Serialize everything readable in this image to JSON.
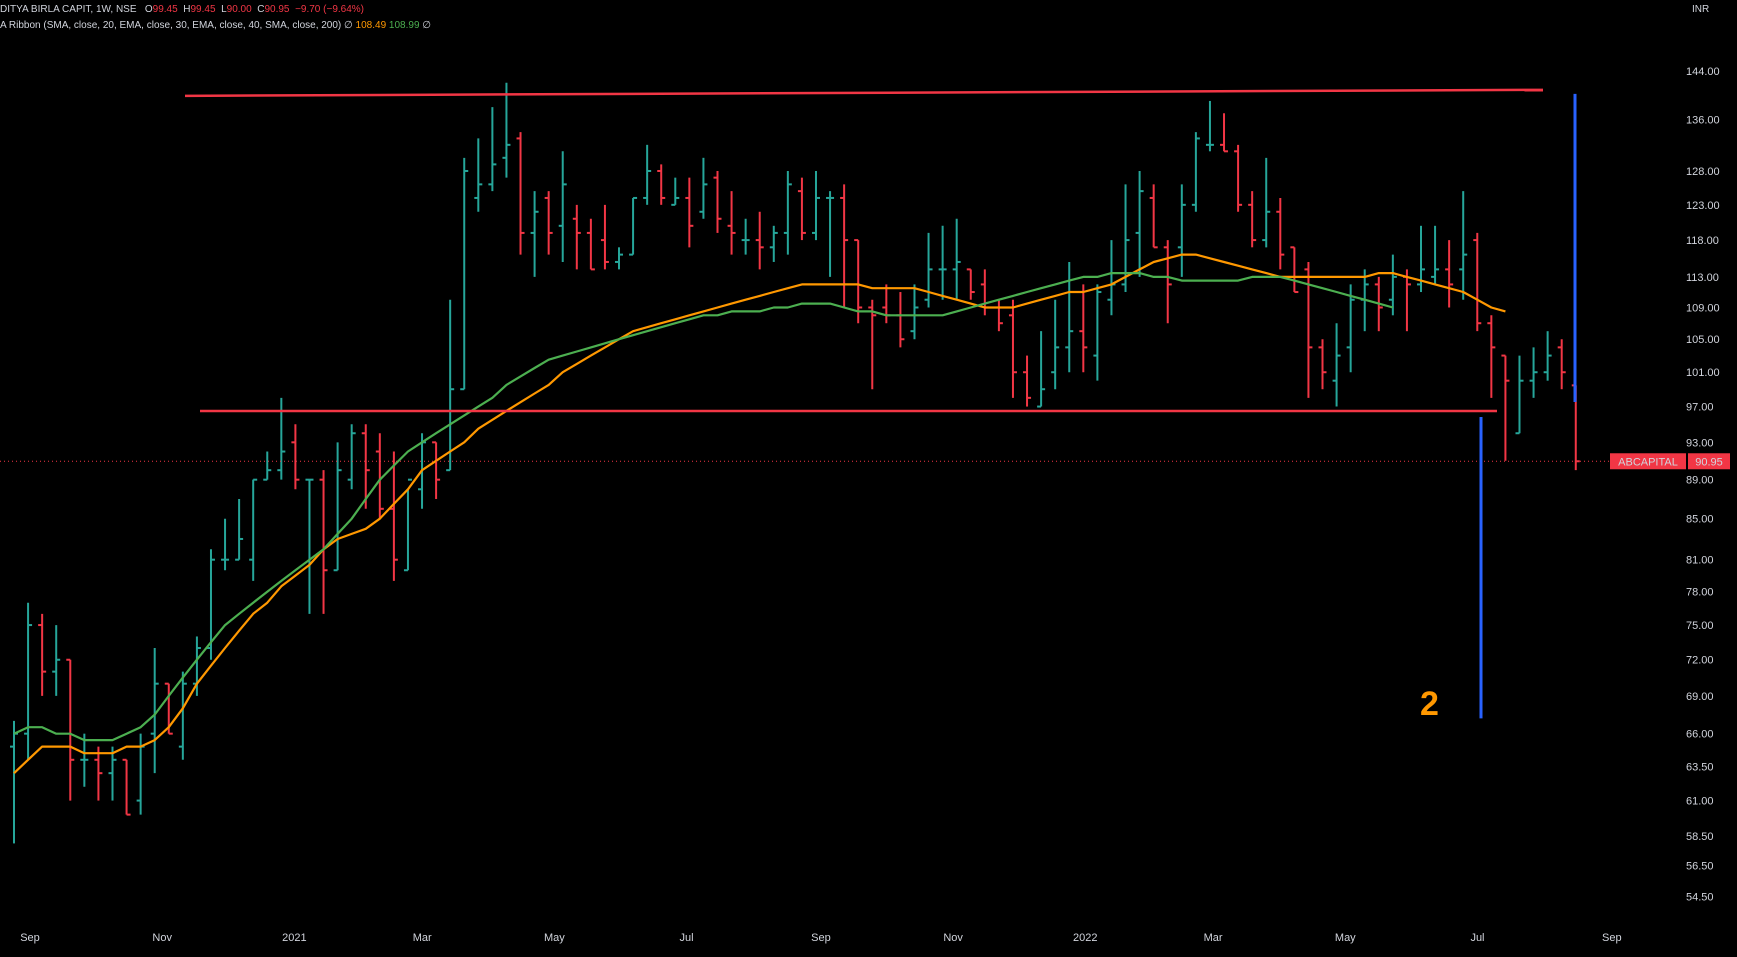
{
  "legend": {
    "title": "DITYA BIRLA CAPIT, 1W, NSE",
    "o_label": "O",
    "o_val": "99.45",
    "h_label": "H",
    "h_val": "99.45",
    "l_label": "L",
    "l_val": "90.00",
    "c_label": "C",
    "c_val": "90.95",
    "change": "−9.70 (−9.64%)",
    "indicator": "A Ribbon (SMA, close, 20, EMA, close, 30, EMA, close, 40, SMA, close, 200)",
    "ind_sep1": "∅",
    "ema_val": "108.49",
    "sma_val": "108.99",
    "ind_sep2": "∅"
  },
  "currency": "INR",
  "price_tag": {
    "symbol": "ABCAPITAL",
    "value": "90.95"
  },
  "annotation_text": "2",
  "colors": {
    "up": "#26a69a",
    "down": "#f23645",
    "ema": "#ff9800",
    "sma": "#4caf50",
    "level": "#f23645",
    "measure": "#2962ff",
    "annotation": "#ff9800"
  },
  "chart_data": {
    "type": "ohlc",
    "interval": "1W",
    "symbol": "ABCAPITAL",
    "y_axis": {
      "scale": "log",
      "range": [
        53,
        152
      ],
      "ticks": [
        "144.00",
        "136.00",
        "128.00",
        "123.00",
        "118.00",
        "113.00",
        "109.00",
        "105.00",
        "101.00",
        "97.00",
        "93.00",
        "89.00",
        "85.00",
        "81.00",
        "78.00",
        "75.00",
        "72.00",
        "69.00",
        "66.00",
        "63.50",
        "61.00",
        "58.50",
        "56.50",
        "54.50"
      ]
    },
    "x_axis": {
      "range": [
        "2020-09-01",
        "2022-09-20"
      ],
      "ticks": [
        {
          "label": "Sep",
          "date": "2020-09-01"
        },
        {
          "label": "Nov",
          "date": "2020-11-01"
        },
        {
          "label": "2021",
          "date": "2021-01-01"
        },
        {
          "label": "Mar",
          "date": "2021-03-01"
        },
        {
          "label": "May",
          "date": "2021-05-01"
        },
        {
          "label": "Jul",
          "date": "2021-07-01"
        },
        {
          "label": "Sep",
          "date": "2021-09-01"
        },
        {
          "label": "Nov",
          "date": "2021-11-01"
        },
        {
          "label": "2022",
          "date": "2022-01-01"
        },
        {
          "label": "Mar",
          "date": "2022-03-01"
        },
        {
          "label": "May",
          "date": "2022-05-01"
        },
        {
          "label": "Jul",
          "date": "2022-07-01"
        },
        {
          "label": "Sep",
          "date": "2022-09-01"
        }
      ]
    },
    "bars": [
      {
        "o": 65,
        "h": 67,
        "l": 58,
        "c": 66
      },
      {
        "o": 66,
        "h": 77,
        "l": 64,
        "c": 75
      },
      {
        "o": 75,
        "h": 76,
        "l": 69,
        "c": 71
      },
      {
        "o": 71,
        "h": 75,
        "l": 69,
        "c": 72
      },
      {
        "o": 72,
        "h": 72,
        "l": 61,
        "c": 64
      },
      {
        "o": 64,
        "h": 66,
        "l": 62,
        "c": 64
      },
      {
        "o": 64,
        "h": 65,
        "l": 61,
        "c": 63
      },
      {
        "o": 63,
        "h": 65,
        "l": 61,
        "c": 64
      },
      {
        "o": 64,
        "h": 64,
        "l": 60,
        "c": 60
      },
      {
        "o": 61,
        "h": 66,
        "l": 60,
        "c": 65
      },
      {
        "o": 66,
        "h": 73,
        "l": 63,
        "c": 70
      },
      {
        "o": 70,
        "h": 70,
        "l": 66,
        "c": 66
      },
      {
        "o": 65,
        "h": 71,
        "l": 64,
        "c": 70
      },
      {
        "o": 70,
        "h": 74,
        "l": 69,
        "c": 73
      },
      {
        "o": 73,
        "h": 82,
        "l": 72,
        "c": 81
      },
      {
        "o": 81,
        "h": 85,
        "l": 80,
        "c": 81
      },
      {
        "o": 81,
        "h": 87,
        "l": 81,
        "c": 83
      },
      {
        "o": 81,
        "h": 89,
        "l": 79,
        "c": 89
      },
      {
        "o": 89,
        "h": 92,
        "l": 89,
        "c": 90
      },
      {
        "o": 90,
        "h": 98,
        "l": 89,
        "c": 92
      },
      {
        "o": 93,
        "h": 95,
        "l": 88,
        "c": 89
      },
      {
        "o": 89,
        "h": 89,
        "l": 76,
        "c": 89
      },
      {
        "o": 89,
        "h": 90,
        "l": 76,
        "c": 80
      },
      {
        "o": 80,
        "h": 93,
        "l": 80,
        "c": 90
      },
      {
        "o": 89,
        "h": 95,
        "l": 88,
        "c": 94
      },
      {
        "o": 94,
        "h": 95,
        "l": 86,
        "c": 90
      },
      {
        "o": 92,
        "h": 94,
        "l": 85,
        "c": 86
      },
      {
        "o": 86,
        "h": 92,
        "l": 79,
        "c": 81
      },
      {
        "o": 80,
        "h": 88,
        "l": 80,
        "c": 89
      },
      {
        "o": 88,
        "h": 94,
        "l": 86,
        "c": 93
      },
      {
        "o": 93,
        "h": 93,
        "l": 87,
        "c": 89
      },
      {
        "o": 90,
        "h": 110,
        "l": 90,
        "c": 99
      },
      {
        "o": 99,
        "h": 130,
        "l": 99,
        "c": 128
      },
      {
        "o": 124,
        "h": 133,
        "l": 122,
        "c": 126
      },
      {
        "o": 126,
        "h": 138,
        "l": 125,
        "c": 129
      },
      {
        "o": 130,
        "h": 142,
        "l": 127,
        "c": 132
      },
      {
        "o": 133,
        "h": 134,
        "l": 116,
        "c": 119
      },
      {
        "o": 119,
        "h": 125,
        "l": 113,
        "c": 122
      },
      {
        "o": 124,
        "h": 125,
        "l": 116,
        "c": 119
      },
      {
        "o": 120,
        "h": 131,
        "l": 115,
        "c": 126
      },
      {
        "o": 121,
        "h": 123,
        "l": 114,
        "c": 119
      },
      {
        "o": 119,
        "h": 121,
        "l": 114,
        "c": 114
      },
      {
        "o": 118,
        "h": 123,
        "l": 114,
        "c": 115
      },
      {
        "o": 115,
        "h": 117,
        "l": 114,
        "c": 116
      },
      {
        "o": 116,
        "h": 124,
        "l": 116,
        "c": 124
      },
      {
        "o": 124,
        "h": 132,
        "l": 123,
        "c": 128
      },
      {
        "o": 128,
        "h": 129,
        "l": 123,
        "c": 124
      },
      {
        "o": 123,
        "h": 127,
        "l": 123,
        "c": 124
      },
      {
        "o": 124,
        "h": 127,
        "l": 117,
        "c": 120
      },
      {
        "o": 122,
        "h": 130,
        "l": 121,
        "c": 126
      },
      {
        "o": 127,
        "h": 128,
        "l": 119,
        "c": 121
      },
      {
        "o": 120,
        "h": 125,
        "l": 116,
        "c": 119
      },
      {
        "o": 118,
        "h": 121,
        "l": 116,
        "c": 118
      },
      {
        "o": 118,
        "h": 122,
        "l": 114,
        "c": 117
      },
      {
        "o": 117,
        "h": 120,
        "l": 115,
        "c": 119
      },
      {
        "o": 119,
        "h": 128,
        "l": 116,
        "c": 126
      },
      {
        "o": 125,
        "h": 127,
        "l": 118,
        "c": 119
      },
      {
        "o": 119,
        "h": 128,
        "l": 118,
        "c": 124
      },
      {
        "o": 124,
        "h": 125,
        "l": 113,
        "c": 124
      },
      {
        "o": 124,
        "h": 126,
        "l": 109,
        "c": 118
      },
      {
        "o": 118,
        "h": 118,
        "l": 107,
        "c": 109
      },
      {
        "o": 109,
        "h": 110,
        "l": 99,
        "c": 108
      },
      {
        "o": 109,
        "h": 112,
        "l": 107,
        "c": 108
      },
      {
        "o": 108,
        "h": 111,
        "l": 104,
        "c": 105
      },
      {
        "o": 106,
        "h": 112,
        "l": 105,
        "c": 109
      },
      {
        "o": 110,
        "h": 119,
        "l": 109,
        "c": 114
      },
      {
        "o": 114,
        "h": 120,
        "l": 110,
        "c": 114
      },
      {
        "o": 114,
        "h": 121,
        "l": 110,
        "c": 115
      },
      {
        "o": 114,
        "h": 114,
        "l": 110,
        "c": 111
      },
      {
        "o": 112,
        "h": 114,
        "l": 108,
        "c": 109
      },
      {
        "o": 109,
        "h": 110,
        "l": 106,
        "c": 107
      },
      {
        "o": 108,
        "h": 110,
        "l": 98,
        "c": 101
      },
      {
        "o": 101,
        "h": 103,
        "l": 97,
        "c": 98
      },
      {
        "o": 97,
        "h": 106,
        "l": 97,
        "c": 99
      },
      {
        "o": 101,
        "h": 110,
        "l": 99,
        "c": 104
      },
      {
        "o": 104,
        "h": 115,
        "l": 101,
        "c": 106
      },
      {
        "o": 106,
        "h": 112,
        "l": 101,
        "c": 104
      },
      {
        "o": 103,
        "h": 112,
        "l": 100,
        "c": 111
      },
      {
        "o": 110,
        "h": 118,
        "l": 108,
        "c": 112
      },
      {
        "o": 112,
        "h": 126,
        "l": 111,
        "c": 118
      },
      {
        "o": 119,
        "h": 128,
        "l": 113,
        "c": 125
      },
      {
        "o": 124,
        "h": 126,
        "l": 117,
        "c": 117
      },
      {
        "o": 117,
        "h": 118,
        "l": 107,
        "c": 112
      },
      {
        "o": 117,
        "h": 126,
        "l": 113,
        "c": 123
      },
      {
        "o": 123,
        "h": 134,
        "l": 122,
        "c": 133
      },
      {
        "o": 132,
        "h": 139,
        "l": 131,
        "c": 132
      },
      {
        "o": 132,
        "h": 137,
        "l": 131,
        "c": 131
      },
      {
        "o": 131,
        "h": 132,
        "l": 122,
        "c": 123
      },
      {
        "o": 123,
        "h": 125,
        "l": 117,
        "c": 118
      },
      {
        "o": 118,
        "h": 130,
        "l": 117,
        "c": 122
      },
      {
        "o": 122,
        "h": 124,
        "l": 114,
        "c": 116
      },
      {
        "o": 117,
        "h": 117,
        "l": 111,
        "c": 111
      },
      {
        "o": 114,
        "h": 115,
        "l": 98,
        "c": 104
      },
      {
        "o": 104,
        "h": 105,
        "l": 99,
        "c": 101
      },
      {
        "o": 100,
        "h": 107,
        "l": 97,
        "c": 103
      },
      {
        "o": 104,
        "h": 112,
        "l": 101,
        "c": 110
      },
      {
        "o": 110,
        "h": 114,
        "l": 106,
        "c": 112
      },
      {
        "o": 112,
        "h": 113,
        "l": 106,
        "c": 109
      },
      {
        "o": 110,
        "h": 116,
        "l": 108,
        "c": 113
      },
      {
        "o": 113,
        "h": 114,
        "l": 106,
        "c": 112
      },
      {
        "o": 112,
        "h": 120,
        "l": 111,
        "c": 114
      },
      {
        "o": 113,
        "h": 120,
        "l": 112,
        "c": 114
      },
      {
        "o": 114,
        "h": 118,
        "l": 109,
        "c": 112
      },
      {
        "o": 114,
        "h": 125,
        "l": 110,
        "c": 116
      },
      {
        "o": 118,
        "h": 119,
        "l": 106,
        "c": 107
      },
      {
        "o": 107,
        "h": 108,
        "l": 98,
        "c": 104
      },
      {
        "o": 103,
        "h": 103,
        "l": 91,
        "c": 100
      },
      {
        "o": 94,
        "h": 103,
        "l": 94,
        "c": 100
      },
      {
        "o": 100,
        "h": 104,
        "l": 98,
        "c": 101
      },
      {
        "o": 101,
        "h": 106,
        "l": 100,
        "c": 103
      },
      {
        "o": 104,
        "h": 105,
        "l": 99,
        "c": 101
      },
      {
        "o": 99.45,
        "h": 99.45,
        "l": 90,
        "c": 90.95
      }
    ],
    "series": [
      {
        "name": "EMA 30",
        "values": [
          63.0,
          64.0,
          65.0,
          65.0,
          65.0,
          64.5,
          64.5,
          64.5,
          65.0,
          65.0,
          65.5,
          66.5,
          68.0,
          70.0,
          71.5,
          73.0,
          74.5,
          76.0,
          77.0,
          78.5,
          79.5,
          80.5,
          82.0,
          83.0,
          83.5,
          84.0,
          85.0,
          86.5,
          88.0,
          90.0,
          91.0,
          92.0,
          93.0,
          94.5,
          95.5,
          96.5,
          97.5,
          98.5,
          99.5,
          101.0,
          102.0,
          103.0,
          104.0,
          105.0,
          106.0,
          106.5,
          107.0,
          107.5,
          108.0,
          108.5,
          109.0,
          109.5,
          110.0,
          110.5,
          111.0,
          111.5,
          112.0,
          112.0,
          112.0,
          112.0,
          112.0,
          111.5,
          111.5,
          111.5,
          111.5,
          111.0,
          110.5,
          110.0,
          109.5,
          109.0,
          109.0,
          109.0,
          109.5,
          110.0,
          110.5,
          111.0,
          111.0,
          111.5,
          112.0,
          113.0,
          114.0,
          115.0,
          115.5,
          116.0,
          116.0,
          115.5,
          115.0,
          114.5,
          114.0,
          113.5,
          113.0,
          113.0,
          113.0,
          113.0,
          113.0,
          113.0,
          113.0,
          113.5,
          113.5,
          113.0,
          112.5,
          112.0,
          111.5,
          111.0,
          110.0,
          109.0,
          108.5
        ]
      },
      {
        "name": "SMA 20",
        "values": [
          66.0,
          66.5,
          66.5,
          66.0,
          66.0,
          65.5,
          65.5,
          65.5,
          66.0,
          66.5,
          67.5,
          69.0,
          70.5,
          72.0,
          73.5,
          75.0,
          76.0,
          77.0,
          78.0,
          79.0,
          80.0,
          81.0,
          82.0,
          83.5,
          85.0,
          87.0,
          89.0,
          90.5,
          92.0,
          93.0,
          94.0,
          95.0,
          96.0,
          97.0,
          98.0,
          99.5,
          100.5,
          101.5,
          102.5,
          103.0,
          103.5,
          104.0,
          104.5,
          105.0,
          105.5,
          106.0,
          106.5,
          107.0,
          107.5,
          108.0,
          108.0,
          108.5,
          108.5,
          108.5,
          109.0,
          109.0,
          109.5,
          109.5,
          109.5,
          109.0,
          108.5,
          108.5,
          108.0,
          108.0,
          108.0,
          108.0,
          108.0,
          108.5,
          109.0,
          109.5,
          110.0,
          110.5,
          111.0,
          111.5,
          112.0,
          112.5,
          113.0,
          113.0,
          113.5,
          113.5,
          113.5,
          113.0,
          113.0,
          112.5,
          112.5,
          112.5,
          112.5,
          112.5,
          113.0,
          113.0,
          113.0,
          112.5,
          112.0,
          111.5,
          111.0,
          110.5,
          110.0,
          109.5,
          109.0
        ]
      }
    ],
    "levels": [
      {
        "name": "resistance",
        "value": 140.5
      },
      {
        "name": "support",
        "value": 96.5
      }
    ]
  }
}
